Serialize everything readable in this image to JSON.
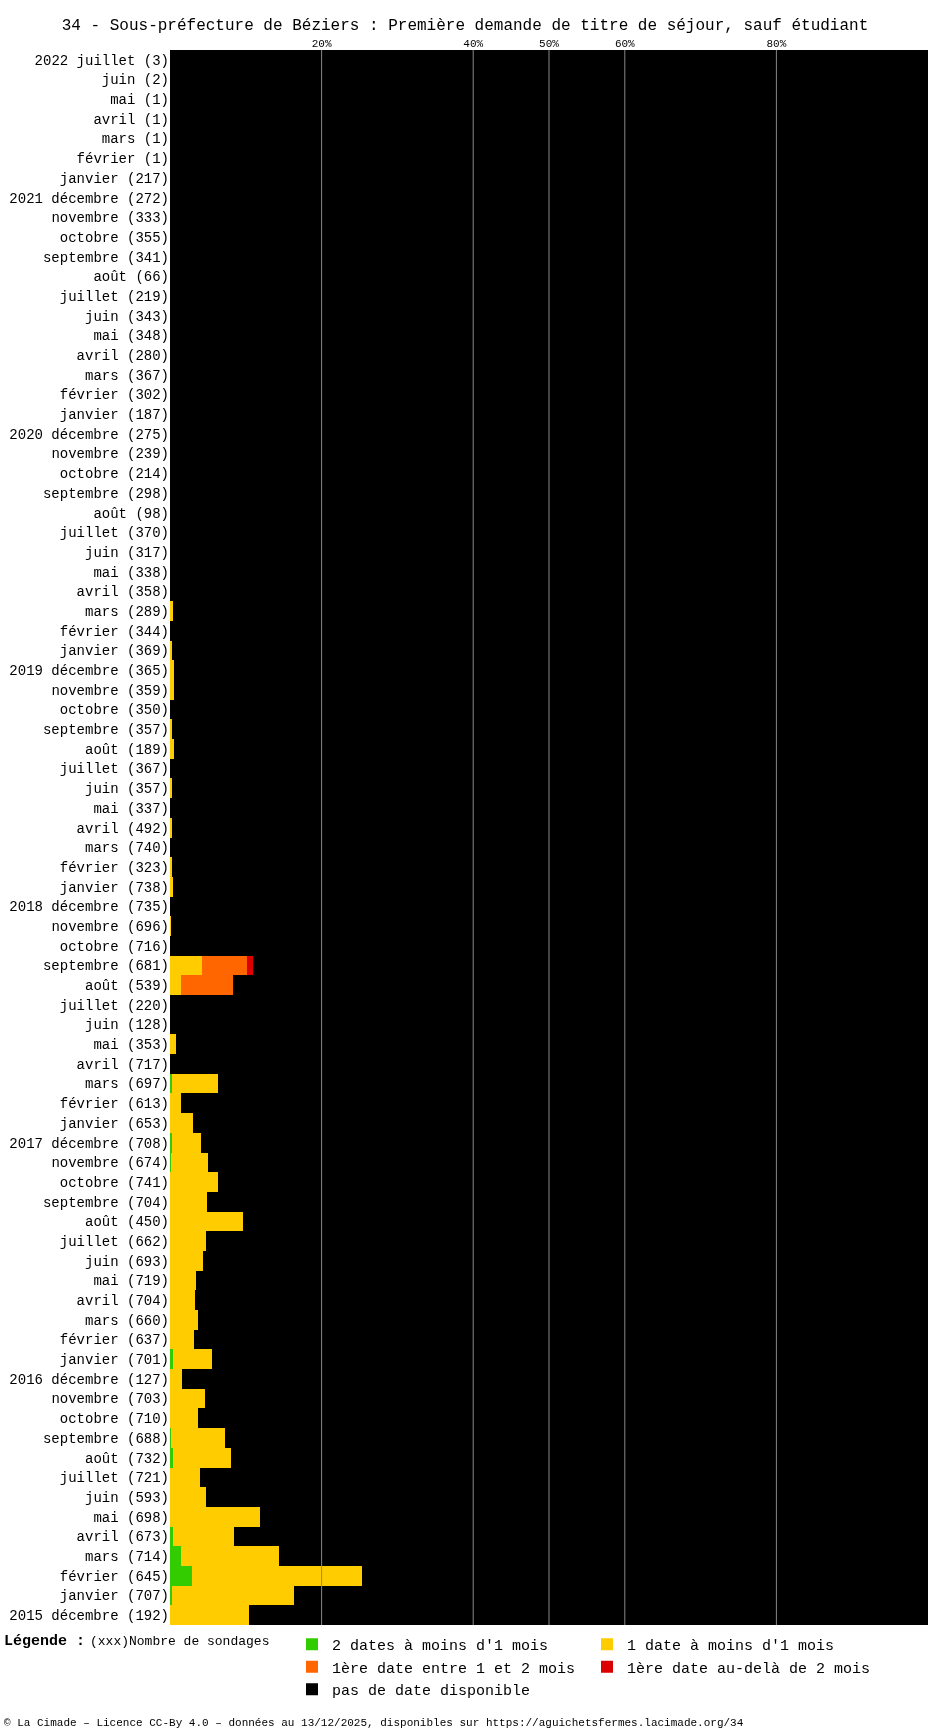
{
  "chart_data": {
    "type": "bar",
    "orientation": "horizontal",
    "stacked": true,
    "title": "34 - Sous-préfecture de Béziers : Première demande de titre de séjour, sauf étudiant",
    "categories": [
      "2022 juillet (3)",
      "juin (2)",
      "mai (1)",
      "avril (1)",
      "mars (1)",
      "février (1)",
      "janvier (217)",
      "2021 décembre (272)",
      "novembre (333)",
      "octobre (355)",
      "septembre (341)",
      "août (66)",
      "juillet (219)",
      "juin (343)",
      "mai (348)",
      "avril (280)",
      "mars (367)",
      "février (302)",
      "janvier (187)",
      "2020 décembre (275)",
      "novembre (239)",
      "octobre (214)",
      "septembre (298)",
      "août (98)",
      "juillet (370)",
      "juin (317)",
      "mai (338)",
      "avril (358)",
      "mars (289)",
      "février (344)",
      "janvier (369)",
      "2019 décembre (365)",
      "novembre (359)",
      "octobre (350)",
      "septembre (357)",
      "août (189)",
      "juillet (367)",
      "juin (357)",
      "mai (337)",
      "avril (492)",
      "mars (740)",
      "février (323)",
      "janvier (738)",
      "2018 décembre (735)",
      "novembre (696)",
      "octobre (716)",
      "septembre (681)",
      "août (539)",
      "juillet (220)",
      "juin (128)",
      "mai (353)",
      "avril (717)",
      "mars (697)",
      "février (613)",
      "janvier (653)",
      "2017 décembre (708)",
      "novembre (674)",
      "octobre (741)",
      "septembre (704)",
      "août (450)",
      "juillet (662)",
      "juin (693)",
      "mai (719)",
      "avril (704)",
      "mars (660)",
      "février (637)",
      "janvier (701)",
      "2016 décembre (127)",
      "novembre (703)",
      "octobre (710)",
      "septembre (688)",
      "août (732)",
      "juillet (721)",
      "juin (593)",
      "mai (698)",
      "avril (673)",
      "mars (714)",
      "février (645)",
      "janvier (707)",
      "2015 décembre (192)"
    ],
    "series": [
      {
        "name": "2 dates à moins d'1 mois",
        "color": "#33cc00",
        "values": [
          0,
          0,
          0,
          0,
          0,
          0,
          0,
          0,
          0,
          0,
          0,
          0,
          0,
          0,
          0,
          0,
          0,
          0,
          0,
          0,
          0,
          0,
          0,
          0,
          0,
          0,
          0,
          0,
          0,
          0,
          0,
          0,
          0,
          0,
          0,
          0,
          0,
          0,
          0,
          0,
          0,
          0,
          0,
          0,
          0,
          0,
          0,
          0,
          0,
          0,
          0,
          0,
          0.3,
          0,
          0,
          0.2,
          0.1,
          0,
          0,
          0,
          0,
          0,
          0,
          0,
          0,
          0,
          0.4,
          0,
          0,
          0,
          0.1,
          0.4,
          0,
          0,
          0,
          0.4,
          1.4,
          2.9,
          0.3,
          0
        ]
      },
      {
        "name": "1 date à moins d'1 mois",
        "color": "#ffcc00",
        "values": [
          0,
          0,
          0,
          0,
          0,
          0,
          0,
          0,
          0,
          0,
          0,
          0,
          0,
          0,
          0,
          0,
          0,
          0,
          0,
          0,
          0,
          0,
          0,
          0,
          0,
          0,
          0,
          0,
          0.4,
          0,
          0.3,
          0.5,
          0.5,
          0,
          0.3,
          0.5,
          0,
          0.3,
          0,
          0.3,
          0,
          0.3,
          0.4,
          0,
          0.1,
          0,
          4.2,
          1.4,
          0,
          0,
          0.8,
          0,
          6.0,
          1.4,
          3.0,
          3.9,
          4.9,
          6.3,
          4.9,
          9.6,
          4.7,
          4.3,
          3.4,
          3.3,
          3.7,
          3.2,
          5.2,
          1.6,
          4.6,
          3.7,
          7.1,
          7.7,
          3.9,
          4.7,
          11.9,
          8.0,
          13.0,
          22.4,
          16.1,
          10.4
        ]
      },
      {
        "name": "1ère date entre 1 et 2 mois",
        "color": "#ff6600",
        "values": [
          0,
          0,
          0,
          0,
          0,
          0,
          0,
          0,
          0,
          0,
          0,
          0,
          0,
          0,
          0,
          0,
          0,
          0,
          0,
          0,
          0,
          0,
          0,
          0,
          0,
          0,
          0,
          0,
          0,
          0,
          0,
          0,
          0,
          0,
          0,
          0,
          0,
          0,
          0,
          0,
          0,
          0,
          0,
          0,
          0,
          0,
          5.9,
          6.9,
          0,
          0,
          0,
          0,
          0,
          0,
          0,
          0,
          0,
          0,
          0,
          0,
          0,
          0,
          0,
          0,
          0,
          0,
          0,
          0,
          0,
          0,
          0,
          0,
          0,
          0,
          0,
          0,
          0,
          0,
          0,
          0
        ]
      },
      {
        "name": "1ère date au-delà de 2 mois",
        "color": "#dd0000",
        "values": [
          0,
          0,
          0,
          0,
          0,
          0,
          0,
          0,
          0,
          0,
          0,
          0,
          0,
          0,
          0,
          0,
          0,
          0,
          0,
          0,
          0,
          0,
          0,
          0,
          0,
          0,
          0,
          0,
          0,
          0,
          0,
          0,
          0,
          0,
          0,
          0,
          0,
          0,
          0,
          0,
          0,
          0,
          0,
          0,
          0,
          0,
          0.9,
          0,
          0,
          0,
          0,
          0,
          0,
          0,
          0,
          0,
          0,
          0,
          0,
          0,
          0,
          0,
          0,
          0,
          0,
          0,
          0,
          0,
          0,
          0,
          0,
          0,
          0,
          0,
          0,
          0,
          0,
          0,
          0,
          0
        ]
      },
      {
        "name": "pas de date disponible",
        "color": "#000000",
        "values": [
          100,
          100,
          100,
          100,
          100,
          100,
          100,
          100,
          100,
          100,
          100,
          100,
          100,
          100,
          100,
          100,
          100,
          100,
          100,
          100,
          100,
          100,
          100,
          100,
          100,
          100,
          100,
          100,
          99.6,
          100,
          99.7,
          99.5,
          99.5,
          100,
          99.7,
          99.5,
          100,
          99.7,
          100,
          99.7,
          100,
          99.7,
          99.6,
          100,
          99.9,
          100,
          89.0,
          91.7,
          100,
          100,
          99.2,
          100,
          93.7,
          98.6,
          97.0,
          95.9,
          95.0,
          93.7,
          95.1,
          90.4,
          95.3,
          95.7,
          96.6,
          96.7,
          96.3,
          96.8,
          94.4,
          98.4,
          95.4,
          96.3,
          92.8,
          91.9,
          96.1,
          95.3,
          88.1,
          91.6,
          85.6,
          74.7,
          83.6,
          89.6
        ]
      }
    ],
    "xlim": [
      0,
      100
    ],
    "xticks": [
      {
        "value": 20,
        "label": "20%"
      },
      {
        "value": 40,
        "label": "40%"
      },
      {
        "value": 50,
        "label": "50%"
      },
      {
        "value": 60,
        "label": "60%"
      },
      {
        "value": 80,
        "label": "80%"
      }
    ],
    "grid": "x",
    "legend": "bottom",
    "legend_title": "Légende :",
    "annotations": [
      "(xxx)Nombre de sondages",
      "© La Cimade – Licence CC-By 4.0 – données au 13/12/2025, disponibles sur https://aguichetsfermes.lacimade.org/34"
    ]
  }
}
